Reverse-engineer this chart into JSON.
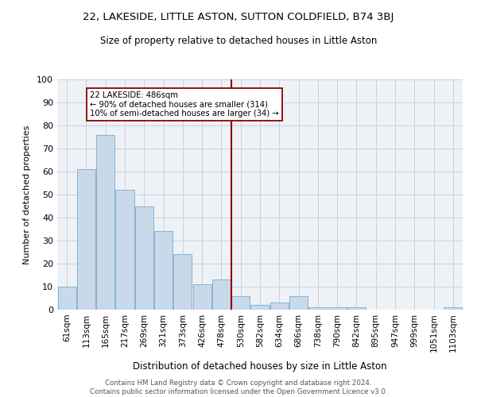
{
  "title": "22, LAKESIDE, LITTLE ASTON, SUTTON COLDFIELD, B74 3BJ",
  "subtitle": "Size of property relative to detached houses in Little Aston",
  "xlabel": "Distribution of detached houses by size in Little Aston",
  "ylabel": "Number of detached properties",
  "bar_color": "#c8d9ea",
  "bar_edge_color": "#7aaac8",
  "background_color": "#eef2f7",
  "ylim": [
    0,
    100
  ],
  "yticks": [
    0,
    10,
    20,
    30,
    40,
    50,
    60,
    70,
    80,
    90,
    100
  ],
  "vline_color": "#8b0000",
  "annotation_line1": "22 LAKESIDE: 486sqm",
  "annotation_line2": "← 90% of detached houses are smaller (314)",
  "annotation_line3": "10% of semi-detached houses are larger (34) →",
  "footer": "Contains HM Land Registry data © Crown copyright and database right 2024.\nContains public sector information licensed under the Open Government Licence v3.0.",
  "grid_color": "#c8d0dc",
  "bar_labels": [
    "61sqm",
    "113sqm",
    "165sqm",
    "217sqm",
    "269sqm",
    "321sqm",
    "373sqm",
    "426sqm",
    "478sqm",
    "530sqm",
    "582sqm",
    "634sqm",
    "686sqm",
    "738sqm",
    "790sqm",
    "842sqm",
    "895sqm",
    "947sqm",
    "999sqm",
    "1051sqm",
    "1103sqm"
  ],
  "bar_heights": [
    10,
    61,
    76,
    52,
    45,
    34,
    24,
    11,
    13,
    6,
    2,
    3,
    6,
    1,
    1,
    1,
    0,
    0,
    0,
    0,
    1
  ],
  "vline_idx": 8.5
}
